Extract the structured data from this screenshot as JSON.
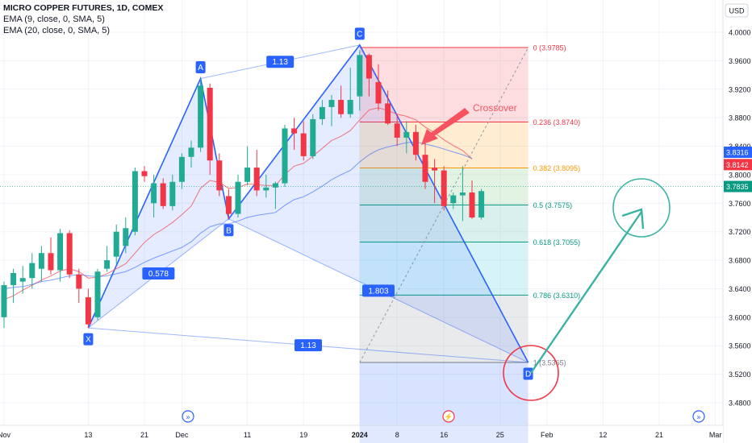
{
  "legend": {
    "symbol": "MICRO COPPER FUTURES, 1D, COMEX",
    "ema_fast": "EMA (9, close, 0, SMA, 5)",
    "ema_slow": "EMA (20, close, 0, SMA, 5)"
  },
  "currency_label": "USD",
  "colors": {
    "up": "#22ab94",
    "down": "#f23645",
    "pattern": "#2962ff",
    "ema_fast": "#f7525f",
    "ema_slow": "#2962ff",
    "arrow": "#3bb3a3",
    "circle_red": "#f23645"
  },
  "chart_data": {
    "type": "candlestick",
    "title": "MICRO COPPER FUTURES, 1D, COMEX",
    "ylim": [
      3.47,
      4.02
    ],
    "y_ticks": [
      "4.0000",
      "3.9600",
      "3.9200",
      "3.8800",
      "3.8400",
      "3.8000",
      "3.7600",
      "3.7200",
      "3.6800",
      "3.6400",
      "3.6000",
      "3.5600",
      "3.5200",
      "3.4800"
    ],
    "x_ticks": [
      {
        "label": "Nov",
        "i": 0
      },
      {
        "label": "13",
        "i": 9
      },
      {
        "label": "21",
        "i": 15
      },
      {
        "label": "Dec",
        "i": 19
      },
      {
        "label": "11",
        "i": 26
      },
      {
        "label": "19",
        "i": 32
      },
      {
        "label": "2024",
        "i": 38
      },
      {
        "label": "8",
        "i": 42
      },
      {
        "label": "16",
        "i": 47
      },
      {
        "label": "25",
        "i": 53
      },
      {
        "label": "Feb",
        "i": 58
      },
      {
        "label": "12",
        "i": 64
      },
      {
        "label": "21",
        "i": 70
      },
      {
        "label": "Mar",
        "i": 76
      }
    ],
    "candles": [
      {
        "o": 3.6,
        "h": 3.65,
        "l": 3.585,
        "c": 3.645
      },
      {
        "o": 3.645,
        "h": 3.668,
        "l": 3.62,
        "c": 3.662
      },
      {
        "o": 3.65,
        "h": 3.672,
        "l": 3.633,
        "c": 3.655
      },
      {
        "o": 3.655,
        "h": 3.69,
        "l": 3.64,
        "c": 3.676
      },
      {
        "o": 3.668,
        "h": 3.7,
        "l": 3.65,
        "c": 3.69
      },
      {
        "o": 3.69,
        "h": 3.712,
        "l": 3.66,
        "c": 3.666
      },
      {
        "o": 3.666,
        "h": 3.724,
        "l": 3.65,
        "c": 3.718
      },
      {
        "o": 3.718,
        "h": 3.722,
        "l": 3.655,
        "c": 3.66
      },
      {
        "o": 3.66,
        "h": 3.668,
        "l": 3.62,
        "c": 3.64
      },
      {
        "o": 3.628,
        "h": 3.64,
        "l": 3.585,
        "c": 3.59
      },
      {
        "o": 3.6,
        "h": 3.668,
        "l": 3.596,
        "c": 3.664
      },
      {
        "o": 3.668,
        "h": 3.7,
        "l": 3.664,
        "c": 3.68
      },
      {
        "o": 3.685,
        "h": 3.73,
        "l": 3.675,
        "c": 3.72
      },
      {
        "o": 3.7,
        "h": 3.74,
        "l": 3.69,
        "c": 3.725
      },
      {
        "o": 3.72,
        "h": 3.81,
        "l": 3.715,
        "c": 3.805
      },
      {
        "o": 3.805,
        "h": 3.812,
        "l": 3.79,
        "c": 3.798
      },
      {
        "o": 3.76,
        "h": 3.8,
        "l": 3.74,
        "c": 3.788
      },
      {
        "o": 3.788,
        "h": 3.795,
        "l": 3.752,
        "c": 3.756
      },
      {
        "o": 3.756,
        "h": 3.8,
        "l": 3.75,
        "c": 3.79
      },
      {
        "o": 3.79,
        "h": 3.83,
        "l": 3.78,
        "c": 3.825
      },
      {
        "o": 3.825,
        "h": 3.848,
        "l": 3.81,
        "c": 3.838
      },
      {
        "o": 3.838,
        "h": 3.935,
        "l": 3.832,
        "c": 3.925
      },
      {
        "o": 3.922,
        "h": 3.928,
        "l": 3.8,
        "c": 3.82
      },
      {
        "o": 3.82,
        "h": 3.83,
        "l": 3.77,
        "c": 3.778
      },
      {
        "o": 3.77,
        "h": 3.78,
        "l": 3.738,
        "c": 3.745
      },
      {
        "o": 3.745,
        "h": 3.8,
        "l": 3.74,
        "c": 3.79
      },
      {
        "o": 3.79,
        "h": 3.84,
        "l": 3.785,
        "c": 3.81
      },
      {
        "o": 3.81,
        "h": 3.835,
        "l": 3.77,
        "c": 3.778
      },
      {
        "o": 3.778,
        "h": 3.8,
        "l": 3.768,
        "c": 3.782
      },
      {
        "o": 3.782,
        "h": 3.79,
        "l": 3.752,
        "c": 3.788
      },
      {
        "o": 3.788,
        "h": 3.87,
        "l": 3.783,
        "c": 3.865
      },
      {
        "o": 3.865,
        "h": 3.88,
        "l": 3.835,
        "c": 3.858
      },
      {
        "o": 3.858,
        "h": 3.875,
        "l": 3.82,
        "c": 3.826
      },
      {
        "o": 3.826,
        "h": 3.885,
        "l": 3.822,
        "c": 3.878
      },
      {
        "o": 3.878,
        "h": 3.905,
        "l": 3.87,
        "c": 3.895
      },
      {
        "o": 3.895,
        "h": 3.912,
        "l": 3.868,
        "c": 3.905
      },
      {
        "o": 3.905,
        "h": 3.925,
        "l": 3.88,
        "c": 3.885
      },
      {
        "o": 3.885,
        "h": 3.95,
        "l": 3.88,
        "c": 3.905
      },
      {
        "o": 3.91,
        "h": 3.975,
        "l": 3.89,
        "c": 3.968
      },
      {
        "o": 3.968,
        "h": 3.97,
        "l": 3.91,
        "c": 3.935
      },
      {
        "o": 3.93,
        "h": 3.955,
        "l": 3.89,
        "c": 3.9
      },
      {
        "o": 3.9,
        "h": 3.918,
        "l": 3.87,
        "c": 3.872
      },
      {
        "o": 3.872,
        "h": 3.885,
        "l": 3.84,
        "c": 3.852
      },
      {
        "o": 3.852,
        "h": 3.875,
        "l": 3.83,
        "c": 3.86
      },
      {
        "o": 3.86,
        "h": 3.87,
        "l": 3.82,
        "c": 3.828
      },
      {
        "o": 3.828,
        "h": 3.845,
        "l": 3.78,
        "c": 3.79
      },
      {
        "o": 3.81,
        "h": 3.822,
        "l": 3.76,
        "c": 3.806
      },
      {
        "o": 3.806,
        "h": 3.812,
        "l": 3.75,
        "c": 3.756
      },
      {
        "o": 3.76,
        "h": 3.775,
        "l": 3.752,
        "c": 3.771
      },
      {
        "o": 3.771,
        "h": 3.812,
        "l": 3.735,
        "c": 3.775
      },
      {
        "o": 3.775,
        "h": 3.792,
        "l": 3.738,
        "c": 3.74
      },
      {
        "o": 3.74,
        "h": 3.78,
        "l": 3.737,
        "c": 3.777
      }
    ],
    "ema9": [
      3.625,
      3.63,
      3.638,
      3.645,
      3.652,
      3.658,
      3.665,
      3.668,
      3.664,
      3.655,
      3.656,
      3.661,
      3.668,
      3.675,
      3.69,
      3.705,
      3.716,
      3.724,
      3.733,
      3.744,
      3.756,
      3.781,
      3.792,
      3.789,
      3.781,
      3.782,
      3.787,
      3.786,
      3.785,
      3.785,
      3.8,
      3.812,
      3.816,
      3.826,
      3.837,
      3.848,
      3.854,
      3.862,
      3.877,
      3.891,
      3.894,
      3.89,
      3.885,
      3.882,
      3.877,
      3.867,
      3.859,
      3.849,
      3.841,
      3.834,
      3.822
    ],
    "ema20": [
      3.64,
      3.642,
      3.643,
      3.646,
      3.65,
      3.652,
      3.655,
      3.658,
      3.66,
      3.658,
      3.657,
      3.658,
      3.661,
      3.664,
      3.67,
      3.677,
      3.683,
      3.688,
      3.693,
      3.698,
      3.706,
      3.718,
      3.727,
      3.731,
      3.731,
      3.735,
      3.74,
      3.743,
      3.745,
      3.747,
      3.757,
      3.765,
      3.769,
      3.776,
      3.784,
      3.793,
      3.8,
      3.806,
      3.818,
      3.828,
      3.835,
      3.839,
      3.842,
      3.845,
      3.846,
      3.843,
      3.84,
      3.836,
      3.832,
      3.828,
      3.823
    ],
    "harmonic": {
      "points": [
        {
          "label": "X",
          "i": 9,
          "y": 3.585
        },
        {
          "label": "A",
          "i": 21,
          "y": 3.935
        },
        {
          "label": "B",
          "i": 24,
          "y": 3.738
        },
        {
          "label": "C",
          "i": 38,
          "y": 3.982
        },
        {
          "label": "D",
          "i": 56,
          "y": 3.5365
        }
      ],
      "ratios": [
        {
          "label": "1.13",
          "between": [
            "A",
            "C"
          ]
        },
        {
          "label": "0.578",
          "between": [
            "X",
            "B"
          ]
        },
        {
          "label": "1.803",
          "between": [
            "B",
            "D"
          ]
        },
        {
          "label": "1.13",
          "between": [
            "X",
            "D"
          ]
        }
      ]
    },
    "fib_levels": [
      {
        "ratio": 0,
        "value": 3.9785,
        "label": "0 (3.9785)",
        "color": "#f23645",
        "fill": "rgba(242,54,69,0.17)"
      },
      {
        "ratio": 0.236,
        "value": 3.874,
        "label": "0.236 (3.8740)",
        "color": "#f23645",
        "fill": "rgba(255,152,0,0.18)"
      },
      {
        "ratio": 0.382,
        "value": 3.8095,
        "label": "0.382 (3.8095)",
        "color": "#ff9800",
        "fill": "rgba(76,175,80,0.16)"
      },
      {
        "ratio": 0.5,
        "value": 3.7575,
        "label": "0.5 (3.7575)",
        "color": "#089981",
        "fill": "rgba(8,153,129,0.15)"
      },
      {
        "ratio": 0.618,
        "value": 3.7055,
        "label": "0.618 (3.7055)",
        "color": "#089981",
        "fill": "rgba(0,188,212,0.16)"
      },
      {
        "ratio": 0.786,
        "value": 3.631,
        "label": "0.786 (3.6310)",
        "color": "#089981",
        "fill": "rgba(120,123,134,0.16)"
      },
      {
        "ratio": 1,
        "value": 3.5365,
        "label": "1 (3.5365)",
        "color": "#787b86",
        "fill": ""
      }
    ],
    "annotation": "Crossover",
    "price_tags": [
      {
        "value": 3.8316,
        "label": "3.8316",
        "color": "#2962ff"
      },
      {
        "value": 3.8142,
        "label": "3.8142",
        "color": "#f23645"
      },
      {
        "value": 3.7835,
        "label": "3.7835",
        "color": "#089981"
      }
    ],
    "current_price": 3.7835
  }
}
